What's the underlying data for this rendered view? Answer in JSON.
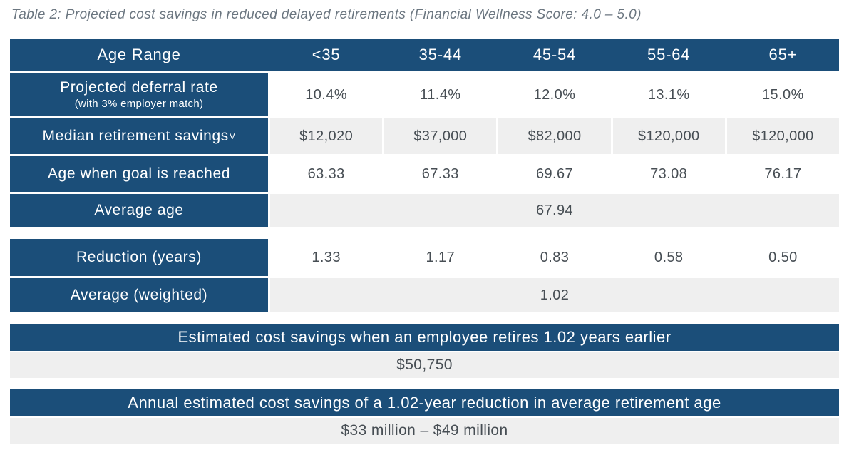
{
  "caption": "Table 2: Projected cost savings in reduced delayed retirements (Financial Wellness Score: 4.0 – 5.0)",
  "table": {
    "header_label": "Age Range",
    "columns": [
      "<35",
      "35-44",
      "45-54",
      "55-64",
      "65+"
    ],
    "rows": [
      {
        "label": "Projected deferral rate",
        "sublabel": "(with 3% employer match)",
        "values": [
          "10.4%",
          "11.4%",
          "12.0%",
          "13.1%",
          "15.0%"
        ]
      },
      {
        "label": "Median retirement savings",
        "footnote_mark": "V",
        "values": [
          "$12,020",
          "$37,000",
          "$82,000",
          "$120,000",
          "$120,000"
        ]
      },
      {
        "label": "Age when goal is reached",
        "values": [
          "63.33",
          "67.33",
          "69.67",
          "73.08",
          "76.17"
        ]
      },
      {
        "label": "Average age",
        "merged_value": "67.94"
      }
    ]
  },
  "reduction": {
    "rows": [
      {
        "label": "Reduction (years)",
        "values": [
          "1.33",
          "1.17",
          "0.83",
          "0.58",
          "0.50"
        ]
      },
      {
        "label": "Average (weighted)",
        "merged_value": "1.02"
      }
    ]
  },
  "summaries": [
    {
      "heading": "Estimated cost savings when an employee retires 1.02 years earlier",
      "value": "$50,750"
    },
    {
      "heading": "Annual estimated cost savings of a 1.02-year reduction in average retirement age",
      "value": "$33 million – $49 million"
    }
  ],
  "colors": {
    "primary": "#1b4e79",
    "shade": "#efefef",
    "text": "#474e54",
    "caption": "#6b7680"
  }
}
